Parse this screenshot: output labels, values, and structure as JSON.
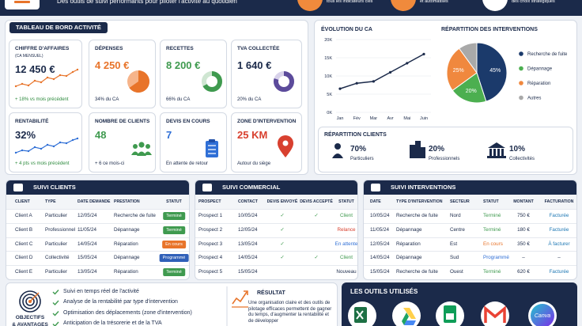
{
  "header": {
    "subtitle": "Des outils de suivi performants pour piloter l'activité au quotidien",
    "features": [
      "tous les indicateurs clés",
      "et automatisés",
      "des choix stratégiques"
    ]
  },
  "dashboard": {
    "title": "TABLEAU DE BORD ACTIVITÉ",
    "kpis": [
      {
        "label": "CHIFFRE D'AFFAIRES",
        "sublabel": "(CA MENSUEL)",
        "value": "12 450 €",
        "note": "+ 18% vs mois précédent",
        "color": "#1b2a4a",
        "note_color": "#2e8b3e"
      },
      {
        "label": "DÉPENSES",
        "value": "4 250 €",
        "note": "34% du CA",
        "color": "#e8742a",
        "note_color": "#1b2a4a"
      },
      {
        "label": "RECETTES",
        "value": "8 200 €",
        "note": "66% du CA",
        "color": "#3f9a4f",
        "note_color": "#1b2a4a"
      },
      {
        "label": "TVA COLLECTÉE",
        "value": "1 640 €",
        "note": "20% du CA",
        "color": "#1b2a4a",
        "note_color": "#1b2a4a"
      },
      {
        "label": "RENTABILITÉ",
        "value": "32%",
        "note": "+ 4 pts vs mois précédent",
        "color": "#1b2a4a",
        "note_color": "#2e8b3e"
      },
      {
        "label": "NOMBRE DE CLIENTS",
        "value": "48",
        "note": "+ 6 ce mois-ci",
        "color": "#3f9a4f",
        "note_color": "#1b2a4a"
      },
      {
        "label": "DEVIS EN COURS",
        "value": "7",
        "note": "En attente de retour",
        "color": "#2f6fd6",
        "note_color": "#1b2a4a"
      },
      {
        "label": "ZONE D'INTERVENTION",
        "value": "25 KM",
        "note": "Autour du siège",
        "color": "#d8402f",
        "note_color": "#1b2a4a"
      }
    ]
  },
  "chart_data": [
    {
      "type": "line",
      "title": "ÉVOLUTION DU CA",
      "categories": [
        "Jan",
        "Fév",
        "Mar",
        "Avr",
        "Mai",
        "Juin"
      ],
      "series": [
        {
          "color": "#1b2a4a",
          "values": [
            6500,
            8000,
            8500,
            11000,
            13500,
            16000
          ]
        }
      ],
      "ylim": [
        0,
        20000
      ],
      "yticks": [
        {
          "value": 0,
          "label": "0K"
        },
        {
          "value": 5000,
          "label": "5K"
        },
        {
          "value": 10000,
          "label": "10K"
        },
        {
          "value": 15000,
          "label": "15K"
        },
        {
          "value": 20000,
          "label": "20K"
        }
      ],
      "grid": true
    },
    {
      "type": "pie",
      "title": "RÉPARTITION DES INTERVENTIONS",
      "categories": [
        "Recherche de fuite",
        "Dépannage",
        "Réparation",
        "Autres"
      ],
      "values": [
        45,
        20,
        25,
        10
      ],
      "value_labels": [
        "45%",
        "20%",
        "25%",
        null
      ],
      "colors": [
        "#1b3a6b",
        "#4caf50",
        "#f0883e",
        "#a9a9a9"
      ]
    }
  ],
  "clients_split": {
    "title": "RÉPARTITION CLIENTS",
    "items": [
      {
        "value": "70%",
        "label": "Particuliers"
      },
      {
        "value": "20%",
        "label": "Professionnels"
      },
      {
        "value": "10%",
        "label": "Collectivités"
      }
    ]
  },
  "tables": [
    {
      "title": "SUIVI CLIENTS",
      "badge": true,
      "columns": [
        "CLIENT",
        "TYPE",
        "DATE DEMANDE",
        "PRESTATION",
        "STATUT"
      ],
      "rows": [
        [
          "Client A",
          "Particulier",
          "12/05/24",
          "Recherche de fuite",
          {
            "text": "Terminé",
            "color": "#3f9a4f"
          }
        ],
        [
          "Client B",
          "Professionnel",
          "11/05/24",
          "Dépannage",
          {
            "text": "Terminé",
            "color": "#3f9a4f"
          }
        ],
        [
          "Client C",
          "Particulier",
          "14/05/24",
          "Réparation",
          {
            "text": "En cours",
            "color": "#e8742a"
          }
        ],
        [
          "Client D",
          "Collectivité",
          "15/05/24",
          "Dépannage",
          {
            "text": "Programmé",
            "color": "#2f5fb8"
          }
        ],
        [
          "Client E",
          "Particulier",
          "13/05/24",
          "Réparation",
          {
            "text": "Terminé",
            "color": "#3f9a4f"
          }
        ]
      ]
    },
    {
      "title": "SUIVI COMMERCIAL",
      "badge": false,
      "columns": [
        "PROSPECT",
        "CONTACT",
        "DEVIS ENVOYÉ",
        "DEVIS ACCEPTÉ",
        "STATUT"
      ],
      "rows": [
        [
          "Prospect 1",
          "10/05/24",
          {
            "text": "✓",
            "color": "#3f9a4f"
          },
          {
            "text": "✓",
            "color": "#3f9a4f"
          },
          {
            "text": "Client",
            "color": "#3f9a4f"
          }
        ],
        [
          "Prospect 2",
          "12/05/24",
          {
            "text": "✓",
            "color": "#3f9a4f"
          },
          null,
          {
            "text": "Relance",
            "color": "#d8402f"
          }
        ],
        [
          "Prospect 3",
          "13/05/24",
          {
            "text": "✓",
            "color": "#3f9a4f"
          },
          null,
          {
            "text": "En attente",
            "color": "#2f6fd6"
          }
        ],
        [
          "Prospect 4",
          "14/05/24",
          {
            "text": "✓",
            "color": "#3f9a4f"
          },
          {
            "text": "✓",
            "color": "#3f9a4f"
          },
          {
            "text": "Client",
            "color": "#3f9a4f"
          }
        ],
        [
          "Prospect 5",
          "15/05/24",
          null,
          null,
          "Nouveau"
        ]
      ]
    },
    {
      "title": "SUIVI INTERVENTIONS",
      "badge": false,
      "columns": [
        "DATE",
        "TYPE D'INTERVENTION",
        "SECTEUR",
        "STATUT",
        "MONTANT",
        "FACTURATION"
      ],
      "rows": [
        [
          "10/05/24",
          "Recherche de fuite",
          "Nord",
          {
            "text": "Terminé",
            "color": "#3f9a4f"
          },
          "750 €",
          {
            "text": "Facturée",
            "color": "#1f78b4"
          }
        ],
        [
          "11/05/24",
          "Dépannage",
          "Centre",
          {
            "text": "Terminé",
            "color": "#3f9a4f"
          },
          "180 €",
          {
            "text": "Facturée",
            "color": "#1f78b4"
          }
        ],
        [
          "12/05/24",
          "Réparation",
          "Est",
          {
            "text": "En cours",
            "color": "#e8742a"
          },
          "350 €",
          {
            "text": "À facturer",
            "color": "#1f78b4"
          }
        ],
        [
          "14/05/24",
          "Dépannage",
          "Sud",
          {
            "text": "Programmé",
            "color": "#2f6fd6"
          },
          "–",
          "–"
        ],
        [
          "15/05/24",
          "Recherche de fuite",
          "Ouest",
          {
            "text": "Terminé",
            "color": "#3f9a4f"
          },
          "620 €",
          {
            "text": "Facturée",
            "color": "#1f78b4"
          }
        ]
      ]
    }
  ],
  "objectives": {
    "title": "OBJECTIFS",
    "title_line2": "& AVANTAGES",
    "items": [
      "Suivi en temps réel de l'activité",
      "Analyse de la rentabilité par type d'intervention",
      "Optimisation des déplacements (zone d'intervention)",
      "Anticipation de la trésorerie et de la TVA"
    ]
  },
  "result": {
    "title": "RÉSULTAT",
    "text": "Une organisation claire et des outils de pilotage efficaces permettent de gagner du temps, d'augmenter la rentabilité et de développer"
  },
  "tools": {
    "title": "LES OUTILS UTILISÉS",
    "canva": "Canva"
  }
}
